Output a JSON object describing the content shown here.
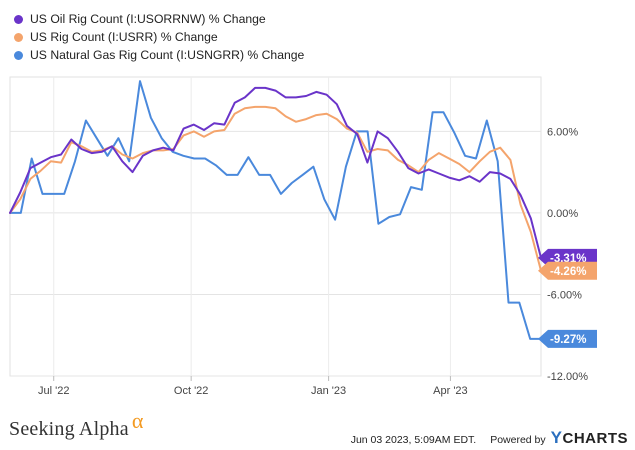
{
  "chart_data": {
    "type": "line",
    "y_ticks": [
      "6.00%",
      "0.00%",
      "-6.00%",
      "-12.00%"
    ],
    "y_tick_values": [
      6,
      0,
      -6,
      -12
    ],
    "ylim": [
      -12,
      10
    ],
    "x_ticks": [
      "Jul '22",
      "Oct '22",
      "Jan '23",
      "Apr '23"
    ],
    "x_tick_weeks": [
      4.2,
      17.4,
      30.6,
      42.3
    ],
    "x_range_weeks": [
      0,
      51
    ],
    "series": [
      {
        "name": "US Oil Rig Count (I:USORRNW) % Change",
        "color": "#6a34c9",
        "end_label": "-3.31%",
        "values": [
          0.0,
          1.5,
          3.3,
          3.7,
          4.1,
          4.3,
          5.4,
          4.7,
          4.4,
          4.5,
          4.9,
          3.8,
          3.0,
          4.2,
          4.6,
          4.8,
          4.6,
          6.2,
          6.5,
          6.1,
          6.6,
          6.5,
          8.1,
          8.5,
          9.2,
          9.2,
          9.0,
          8.5,
          8.5,
          8.6,
          8.9,
          8.7,
          8.0,
          6.4,
          5.8,
          3.7,
          6.0,
          5.5,
          4.5,
          3.3,
          2.9,
          3.2,
          2.9,
          2.6,
          2.4,
          2.7,
          2.3,
          3.0,
          2.9,
          2.5,
          1.3,
          -0.4,
          -3.31
        ]
      },
      {
        "name": "US Rig Count (I:USRR) % Change",
        "color": "#f4a46c",
        "end_label": "-4.26%",
        "values": [
          0.0,
          1.0,
          2.5,
          3.1,
          3.8,
          3.7,
          5.2,
          4.9,
          4.5,
          4.6,
          4.9,
          4.3,
          4.0,
          4.4,
          4.6,
          4.6,
          4.7,
          5.7,
          6.0,
          5.6,
          6.0,
          6.1,
          7.3,
          7.7,
          7.8,
          7.8,
          7.7,
          7.1,
          6.7,
          6.9,
          7.2,
          7.3,
          6.9,
          6.2,
          5.9,
          4.5,
          4.7,
          4.6,
          3.9,
          3.5,
          3.0,
          3.9,
          4.4,
          4.0,
          3.6,
          3.0,
          3.8,
          4.5,
          4.8,
          3.9,
          0.6,
          -1.4,
          -4.26
        ]
      },
      {
        "name": "US Natural Gas Rig Count (I:USNGRR) % Change",
        "color": "#4a89dc",
        "end_label": "-9.27%",
        "values": [
          0.0,
          0.0,
          4.0,
          1.4,
          1.4,
          1.4,
          3.8,
          6.8,
          5.5,
          4.2,
          5.5,
          3.8,
          9.7,
          7.0,
          5.5,
          4.5,
          4.2,
          4.0,
          4.0,
          3.5,
          2.8,
          2.8,
          4.1,
          2.8,
          2.8,
          1.4,
          2.2,
          2.8,
          3.4,
          1.0,
          -0.5,
          3.4,
          6.0,
          6.0,
          -0.8,
          -0.3,
          -0.1,
          1.9,
          1.7,
          7.4,
          7.4,
          5.9,
          4.2,
          4.0,
          6.8,
          3.8,
          -6.6,
          -6.6,
          -9.27,
          -9.27
        ]
      }
    ]
  },
  "footer": {
    "brand": "Seeking Alpha",
    "brand_symbol": "α",
    "timestamp": "Jun 03 2023, 5:09AM EDT.",
    "powered_by": "Powered by",
    "logo_y": "Y",
    "logo_rest": "CHARTS"
  }
}
